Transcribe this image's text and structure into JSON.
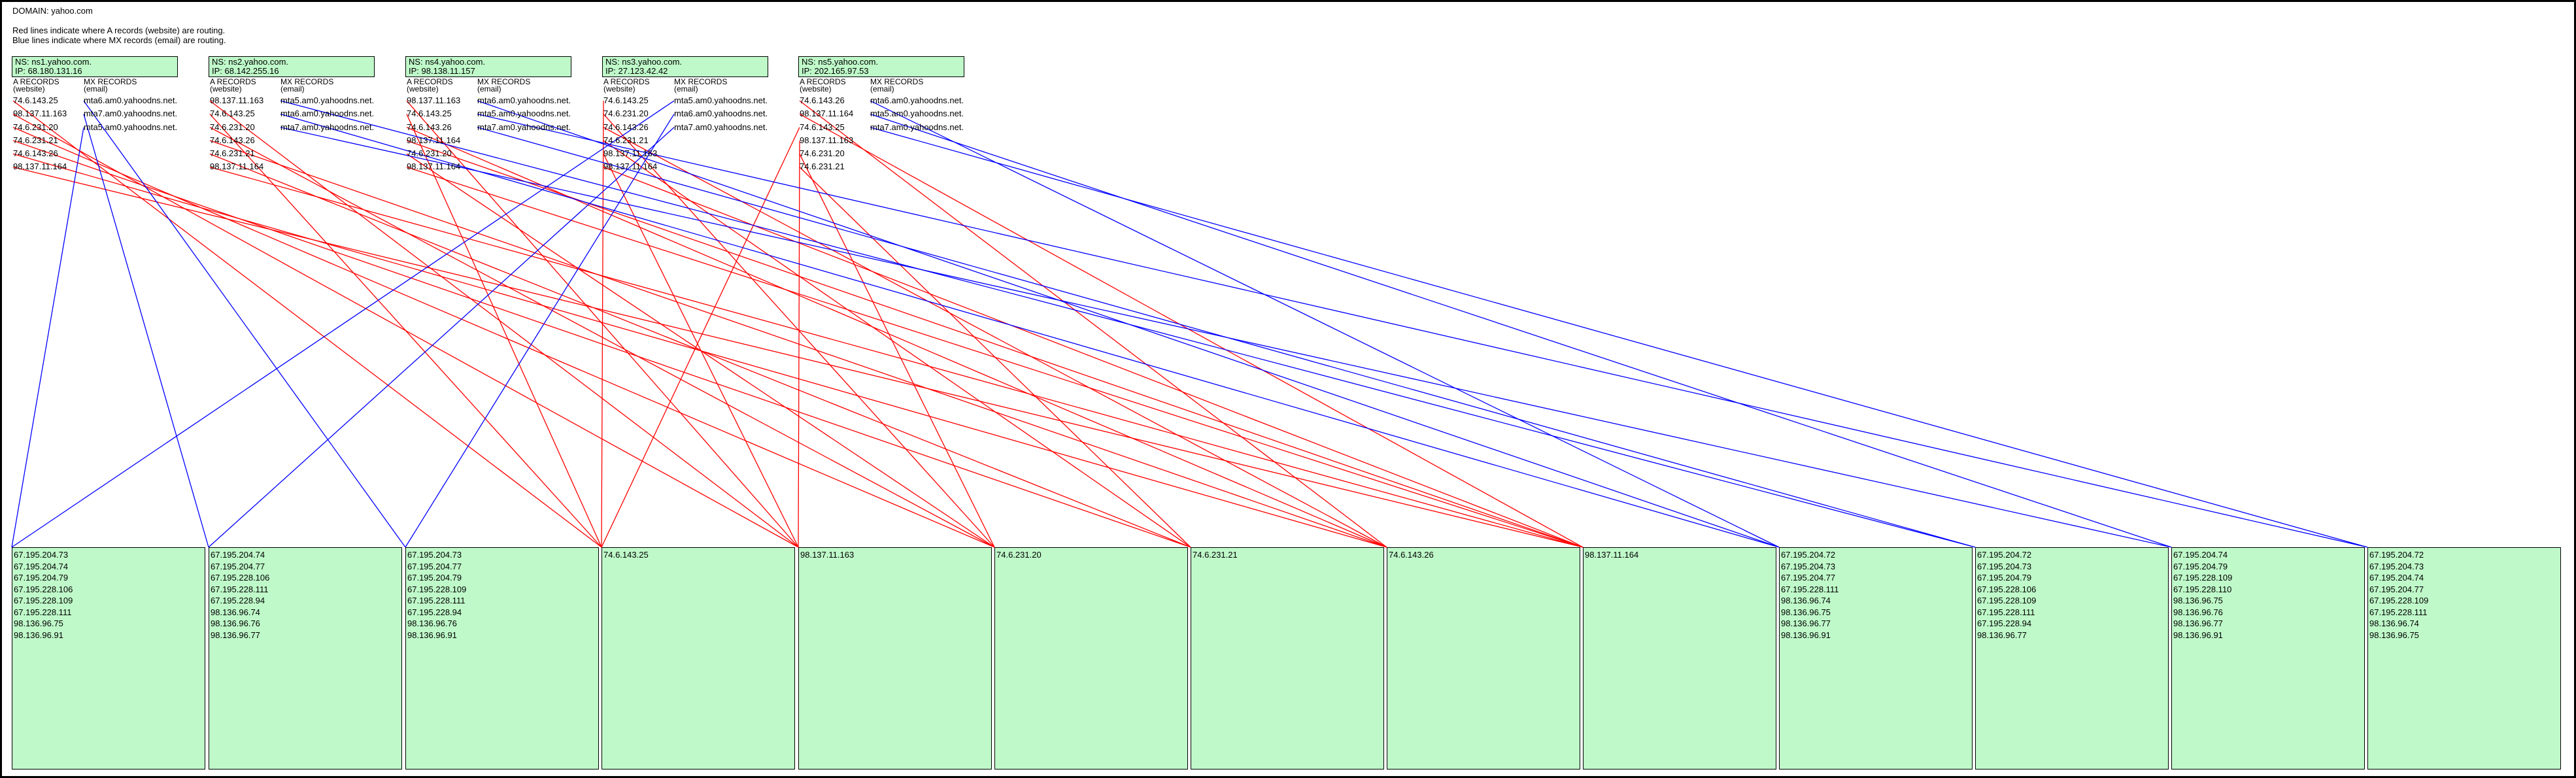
{
  "domain_label": "DOMAIN: yahoo.com",
  "legend": {
    "red": "Red lines indicate where A records (website) are routing.",
    "blue": "Blue lines indicate where MX records (email) are routing."
  },
  "colors": {
    "a_line": "#ff0000",
    "mx_line": "#0000ff",
    "box_fill": "#bff9c9"
  },
  "a_header": [
    "A RECORDS",
    "(website)"
  ],
  "mx_header": [
    "MX RECORDS",
    "(email)"
  ],
  "nameservers": [
    {
      "ns": "NS: ns1.yahoo.com.",
      "ip": "IP: 68.180.131.16",
      "a_records": [
        "74.6.143.25",
        "98.137.11.163",
        "74.6.231.20",
        "74.6.231.21",
        "74.6.143.26",
        "98.137.11.164"
      ],
      "mx_records": [
        "mta6.am0.yahoodns.net.",
        "mta7.am0.yahoodns.net.",
        "mta5.am0.yahoodns.net."
      ]
    },
    {
      "ns": "NS: ns2.yahoo.com.",
      "ip": "IP: 68.142.255.16",
      "a_records": [
        "98.137.11.163",
        "74.6.143.25",
        "74.6.231.20",
        "74.6.143.26",
        "74.6.231.21",
        "98.137.11.164"
      ],
      "mx_records": [
        "mta5.am0.yahoodns.net.",
        "mta6.am0.yahoodns.net.",
        "mta7.am0.yahoodns.net."
      ]
    },
    {
      "ns": "NS: ns4.yahoo.com.",
      "ip": "IP: 98.138.11.157",
      "a_records": [
        "98.137.11.163",
        "74.6.143.25",
        "74.6.143.26",
        "98.137.11.164",
        "74.6.231.20",
        "98.137.11.164"
      ],
      "mx_records": [
        "mta6.am0.yahoodns.net.",
        "mta5.am0.yahoodns.net.",
        "mta7.am0.yahoodns.net."
      ]
    },
    {
      "ns": "NS: ns3.yahoo.com.",
      "ip": "IP: 27.123.42.42",
      "a_records": [
        "74.6.143.25",
        "74.6.231.20",
        "74.6.143.26",
        "74.6.231.21",
        "98.137.11.163",
        "98.137.11.164"
      ],
      "mx_records": [
        "mta5.am0.yahoodns.net.",
        "mta6.am0.yahoodns.net.",
        "mta7.am0.yahoodns.net."
      ]
    },
    {
      "ns": "NS: ns5.yahoo.com.",
      "ip": "IP: 202.165.97.53",
      "a_records": [
        "74.6.143.26",
        "98.137.11.164",
        "74.6.143.25",
        "98.137.11.163",
        "74.6.231.20",
        "74.6.231.21"
      ],
      "mx_records": [
        "mta6.am0.yahoodns.net.",
        "mta5.am0.yahoodns.net.",
        "mta7.am0.yahoodns.net."
      ]
    }
  ],
  "destinations": [
    {
      "lines": [
        "67.195.204.73",
        "67.195.204.74",
        "67.195.204.79",
        "67.195.228.106",
        "67.195.228.109",
        "67.195.228.111",
        "98.136.96.75",
        "98.136.96.91"
      ]
    },
    {
      "lines": [
        "67.195.204.74",
        "67.195.204.77",
        "67.195.228.106",
        "67.195.228.111",
        "67.195.228.94",
        "98.136.96.74",
        "98.136.96.76",
        "98.136.96.77"
      ]
    },
    {
      "lines": [
        "67.195.204.73",
        "67.195.204.77",
        "67.195.204.79",
        "67.195.228.109",
        "67.195.228.111",
        "67.195.228.94",
        "98.136.96.76",
        "98.136.96.91"
      ]
    },
    {
      "lines": [
        "74.6.143.25"
      ]
    },
    {
      "lines": [
        "98.137.11.163"
      ]
    },
    {
      "lines": [
        "74.6.231.20"
      ]
    },
    {
      "lines": [
        "74.6.231.21"
      ]
    },
    {
      "lines": [
        "74.6.143.26"
      ]
    },
    {
      "lines": [
        "98.137.11.164"
      ]
    },
    {
      "lines": [
        "67.195.204.72",
        "67.195.204.73",
        "67.195.204.77",
        "67.195.228.111",
        "98.136.96.74",
        "98.136.96.75",
        "98.136.96.77",
        "98.136.96.91"
      ]
    },
    {
      "lines": [
        "67.195.204.72",
        "67.195.204.73",
        "67.195.204.79",
        "67.195.228.106",
        "67.195.228.109",
        "67.195.228.111",
        "67.195.228.94",
        "98.136.96.77"
      ]
    },
    {
      "lines": [
        "67.195.204.74",
        "67.195.204.79",
        "67.195.228.109",
        "67.195.228.110",
        "98.136.96.75",
        "98.136.96.76",
        "98.136.96.77",
        "98.136.96.91"
      ]
    },
    {
      "lines": [
        "67.195.204.72",
        "67.195.204.73",
        "67.195.204.74",
        "67.195.204.77",
        "67.195.228.109",
        "67.195.228.111",
        "98.136.96.74",
        "98.136.96.75"
      ]
    }
  ],
  "routes": {
    "a": [
      [
        [
          0,
          3
        ],
        [
          1,
          4
        ],
        [
          2,
          5
        ],
        [
          3,
          6
        ],
        [
          4,
          7
        ],
        [
          5,
          8
        ]
      ],
      [
        [
          0,
          4
        ],
        [
          1,
          3
        ],
        [
          2,
          5
        ],
        [
          3,
          7
        ],
        [
          4,
          6
        ],
        [
          5,
          8
        ]
      ],
      [
        [
          0,
          4
        ],
        [
          1,
          3
        ],
        [
          2,
          7
        ],
        [
          3,
          8
        ],
        [
          4,
          5
        ],
        [
          5,
          8
        ]
      ],
      [
        [
          0,
          3
        ],
        [
          1,
          5
        ],
        [
          2,
          7
        ],
        [
          3,
          6
        ],
        [
          4,
          4
        ],
        [
          5,
          8
        ]
      ],
      [
        [
          0,
          7
        ],
        [
          1,
          8
        ],
        [
          2,
          3
        ],
        [
          3,
          4
        ],
        [
          4,
          5
        ],
        [
          5,
          6
        ]
      ]
    ],
    "mx": [
      [
        [
          0,
          2
        ],
        [
          1,
          1
        ],
        [
          2,
          0
        ]
      ],
      [
        [
          0,
          10
        ],
        [
          1,
          9
        ],
        [
          2,
          11
        ]
      ],
      [
        [
          0,
          9
        ],
        [
          1,
          12
        ],
        [
          2,
          10
        ]
      ],
      [
        [
          0,
          0
        ],
        [
          1,
          2
        ],
        [
          2,
          1
        ]
      ],
      [
        [
          0,
          9
        ],
        [
          1,
          11
        ],
        [
          2,
          12
        ]
      ]
    ]
  }
}
